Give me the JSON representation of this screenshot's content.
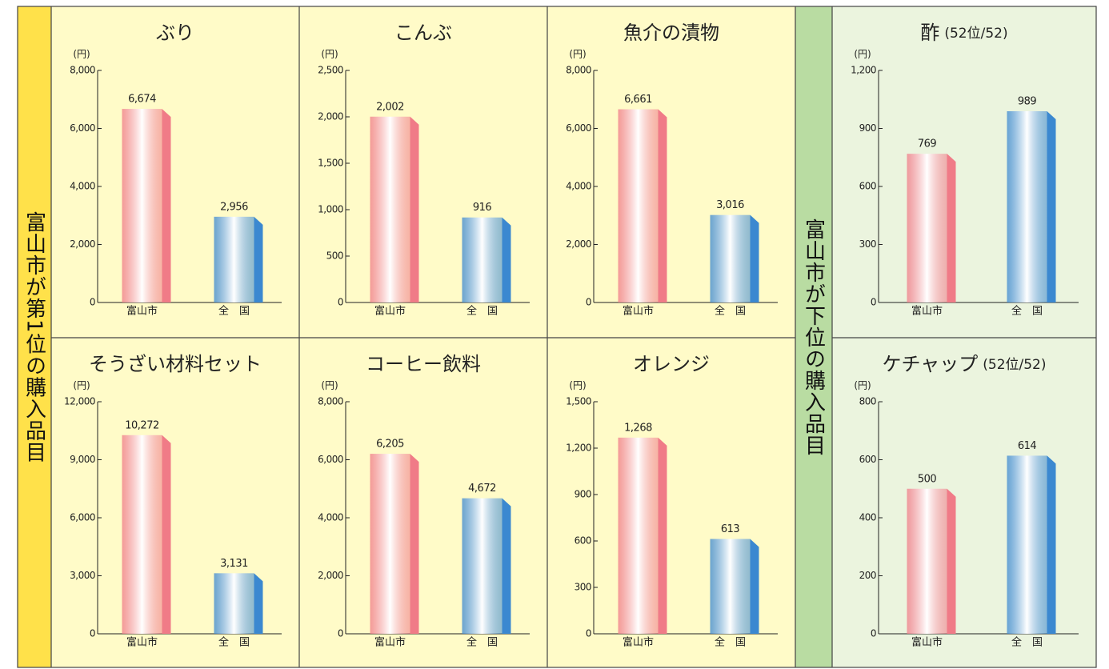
{
  "side_labels": [
    "富山市が第1位の購入品目",
    "富山市が下位の購入品目"
  ],
  "chart_data": [
    {
      "type": "bar",
      "title": "ぶり",
      "y_unit": "(円)",
      "categories": [
        "富山市",
        "全　国"
      ],
      "values": [
        6674,
        2956
      ],
      "value_labels": [
        "6,674",
        "2,956"
      ],
      "colors": [
        "#f07b87",
        "#3b88d0"
      ],
      "ylim": [
        0,
        8000
      ],
      "yticks": [
        0,
        {
          "value": 2000,
          "label": "2,000"
        },
        {
          "value": 4000,
          "label": "4,000"
        },
        {
          "value": 6000,
          "label": "6,000"
        },
        {
          "value": 8000,
          "label": "8,000"
        }
      ]
    },
    {
      "type": "bar",
      "title": "こんぶ",
      "y_unit": "(円)",
      "categories": [
        "富山市",
        "全　国"
      ],
      "values": [
        2002,
        916
      ],
      "value_labels": [
        "2,002",
        "916"
      ],
      "colors": [
        "#f07b87",
        "#3b88d0"
      ],
      "ylim": [
        0,
        2500
      ],
      "yticks": [
        0,
        500,
        {
          "value": 1000,
          "label": "1,000"
        },
        {
          "value": 1500,
          "label": "1,500"
        },
        {
          "value": 2000,
          "label": "2,000"
        },
        {
          "value": 2500,
          "label": "2,500"
        }
      ]
    },
    {
      "type": "bar",
      "title": "魚介の漬物",
      "y_unit": "(円)",
      "categories": [
        "富山市",
        "全　国"
      ],
      "values": [
        6661,
        3016
      ],
      "value_labels": [
        "6,661",
        "3,016"
      ],
      "colors": [
        "#f07b87",
        "#3b88d0"
      ],
      "ylim": [
        0,
        8000
      ],
      "yticks": [
        0,
        {
          "value": 2000,
          "label": "2,000"
        },
        {
          "value": 4000,
          "label": "4,000"
        },
        {
          "value": 6000,
          "label": "6,000"
        },
        {
          "value": 8000,
          "label": "8,000"
        }
      ]
    },
    {
      "type": "bar",
      "title": "酢",
      "subtitle": "(52位/52)",
      "y_unit": "(円)",
      "categories": [
        "富山市",
        "全　国"
      ],
      "values": [
        769,
        989
      ],
      "value_labels": [
        "769",
        "989"
      ],
      "colors": [
        "#f07b87",
        "#3b88d0"
      ],
      "ylim": [
        0,
        1200
      ],
      "yticks": [
        0,
        300,
        600,
        900,
        {
          "value": 1200,
          "label": "1,200"
        }
      ]
    },
    {
      "type": "bar",
      "title": "そうざい材料セット",
      "y_unit": "(円)",
      "categories": [
        "富山市",
        "全　国"
      ],
      "values": [
        10272,
        3131
      ],
      "value_labels": [
        "10,272",
        "3,131"
      ],
      "colors": [
        "#f07b87",
        "#3b88d0"
      ],
      "ylim": [
        0,
        12000
      ],
      "yticks": [
        0,
        {
          "value": 3000,
          "label": "3,000"
        },
        {
          "value": 6000,
          "label": "6,000"
        },
        {
          "value": 9000,
          "label": "9,000"
        },
        {
          "value": 12000,
          "label": "12,000"
        }
      ]
    },
    {
      "type": "bar",
      "title": "コーヒー飲料",
      "y_unit": "(円)",
      "categories": [
        "富山市",
        "全　国"
      ],
      "values": [
        6205,
        4672
      ],
      "value_labels": [
        "6,205",
        "4,672"
      ],
      "colors": [
        "#f07b87",
        "#3b88d0"
      ],
      "ylim": [
        0,
        8000
      ],
      "yticks": [
        0,
        {
          "value": 2000,
          "label": "2,000"
        },
        {
          "value": 4000,
          "label": "4,000"
        },
        {
          "value": 6000,
          "label": "6,000"
        },
        {
          "value": 8000,
          "label": "8,000"
        }
      ]
    },
    {
      "type": "bar",
      "title": "オレンジ",
      "y_unit": "(円)",
      "categories": [
        "富山市",
        "全　国"
      ],
      "values": [
        1268,
        613
      ],
      "value_labels": [
        "1,268",
        "613"
      ],
      "colors": [
        "#f07b87",
        "#3b88d0"
      ],
      "ylim": [
        0,
        1500
      ],
      "yticks": [
        0,
        300,
        600,
        900,
        {
          "value": 1200,
          "label": "1,200"
        },
        {
          "value": 1500,
          "label": "1,500"
        }
      ]
    },
    {
      "type": "bar",
      "title": "ケチャップ",
      "subtitle": "(52位/52)",
      "y_unit": "(円)",
      "categories": [
        "富山市",
        "全　国"
      ],
      "values": [
        500,
        614
      ],
      "value_labels": [
        "500",
        "614"
      ],
      "colors": [
        "#f07b87",
        "#3b88d0"
      ],
      "ylim": [
        0,
        800
      ],
      "yticks": [
        0,
        200,
        400,
        600,
        800
      ]
    }
  ]
}
